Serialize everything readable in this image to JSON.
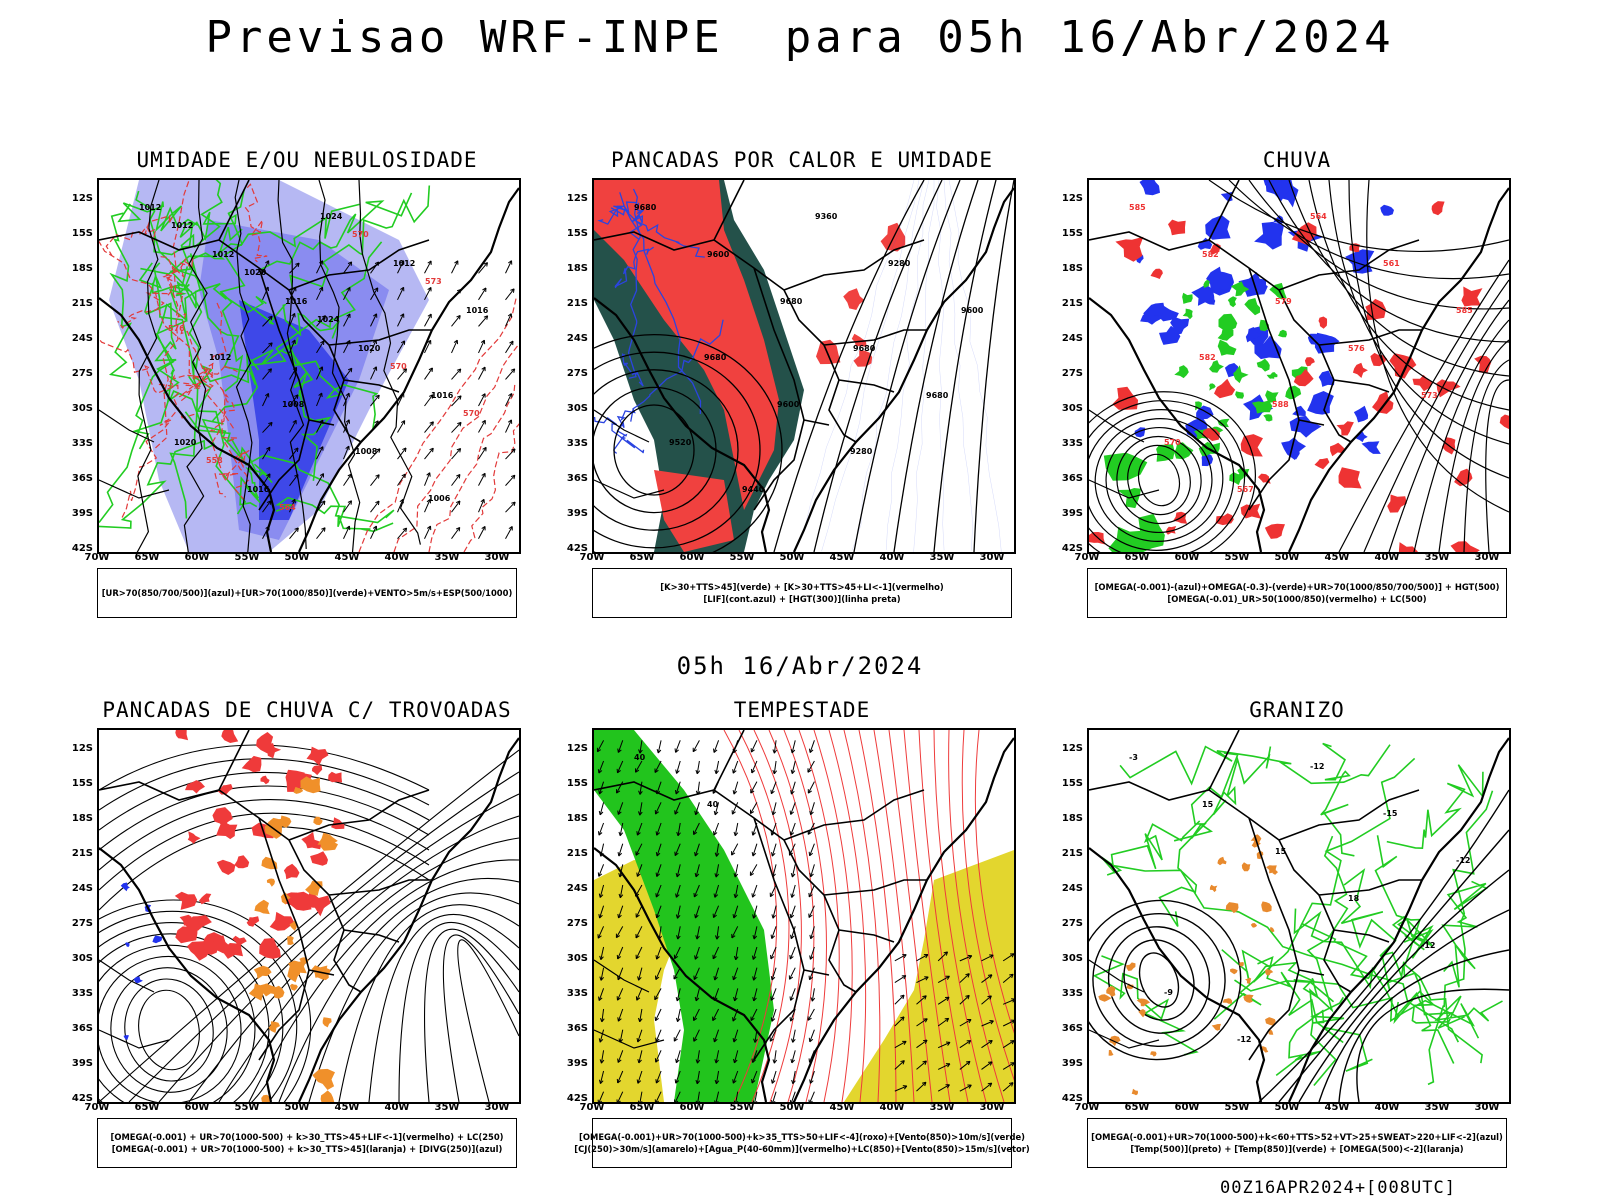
{
  "main_title": "Previsao WRF-INPE  para 05h 16/Abr/2024",
  "mid_time": "05h 16/Abr/2024",
  "footer_id": "00Z16APR2024+[008UTC]",
  "lat_ticks": [
    "12S",
    "15S",
    "18S",
    "21S",
    "24S",
    "27S",
    "30S",
    "33S",
    "36S",
    "39S",
    "42S"
  ],
  "lon_ticks": [
    "70W",
    "65W",
    "60W",
    "55W",
    "50W",
    "45W",
    "40W",
    "35W",
    "30W"
  ],
  "panels": [
    {
      "title": "UMIDADE E/OU NEBULOSIDADE",
      "legend": [
        "[UR>70(850/700/500)](azul)+[UR>70(1000/850)](verde)+VENTO>5m/s+ESP(500/1000)"
      ],
      "contour_labels": [
        "1012",
        "1012",
        "1016",
        "1020",
        "1016",
        "1020",
        "1016",
        "1024",
        "1012",
        "1016",
        "1012",
        "1008",
        "1008",
        "1006",
        "1012",
        "1020",
        "1024",
        "570",
        "570",
        "558",
        "564",
        "570",
        "573",
        "576"
      ],
      "colors": {
        "light_blue": "#b6b8f3",
        "mid_blue": "#8a8cf0",
        "dark_blue": "#3e48e8",
        "green": "#22cc22",
        "red": "#e23a3a"
      }
    },
    {
      "title": "PANCADAS POR CALOR E UMIDADE",
      "legend": [
        "[K>30+TTS>45](verde) + [K>30+TTS>45+LI<-1](vermelho)",
        "[LIF](cont.azul) + [HGT(300)](linha preta)"
      ],
      "contour_labels": [
        "9680",
        "9600",
        "9680",
        "9680",
        "9680",
        "9520",
        "9440",
        "9360",
        "9280",
        "9600",
        "9680",
        "9600",
        "9280"
      ],
      "colors": {
        "red": "#f0413f",
        "dark_green": "#24514a",
        "blue": "#2b44e0",
        "black": "#000000"
      }
    },
    {
      "title": "CHUVA",
      "legend": [
        "[OMEGA(-0.001)-(azul)+OMEGA(-0.3)-(verde)+UR>70(1000/850/700/500)] + HGT(500)",
        "[OMEGA(-0.01)_UR>50(1000/850)(vermelho) + LC(500)"
      ],
      "contour_labels": [
        "585",
        "582",
        "579",
        "576",
        "573",
        "570",
        "567",
        "564",
        "561",
        "585",
        "582",
        "588"
      ],
      "colors": {
        "blue": "#2233ee",
        "green": "#22cc22",
        "red": "#ee3333",
        "black": "#000000"
      }
    },
    {
      "title": "PANCADAS DE CHUVA C/ TROVOADAS",
      "legend": [
        "[OMEGA(-0.001) + UR>70(1000-500) + k>30_TTS>45+LIF<-1](vermelho) + LC(250)",
        "[OMEGA(-0.001) + UR>70(1000-500) + k>30_TTS>45](laranja) + [DIVG(250)](azul)"
      ],
      "contour_labels": [],
      "colors": {
        "red": "#ef3a3a",
        "orange": "#f0902a",
        "blue": "#2233ee",
        "black": "#000000"
      }
    },
    {
      "title": "TEMPESTADE",
      "legend": [
        "[OMEGA(-0.001)+UR>70(1000-500)+k>35_TTS>50+LIF<-4](roxo)+[Vento(850)>10m/s](verde)",
        "[CJ(250)>30m/s](amarelo)+[Agua_P(40-60mm)](vermelho)+LC(850)+[Vento(850)>15m/s](vetor)"
      ],
      "contour_labels": [
        "40",
        "40"
      ],
      "colors": {
        "green": "#22c41d",
        "yellow": "#e3d62e",
        "red": "#ee3b3b",
        "black": "#000000"
      }
    },
    {
      "title": "GRANIZO",
      "legend": [
        "[OMEGA(-0.001)+UR>70(1000-500)+k<60+TTS>52+VT>25+SWEAT>220+LIF<-2](azul)",
        "[Temp(500)](preto) + [Temp(850)](verde) + [OMEGA(500)<-2](laranja)"
      ],
      "contour_labels": [
        "-3",
        "15",
        "15",
        "18",
        "-12",
        "-9",
        "-12",
        "-12",
        "-15",
        "-12"
      ],
      "colors": {
        "green": "#22cc22",
        "orange": "#e88a2e",
        "black": "#000000"
      }
    }
  ]
}
